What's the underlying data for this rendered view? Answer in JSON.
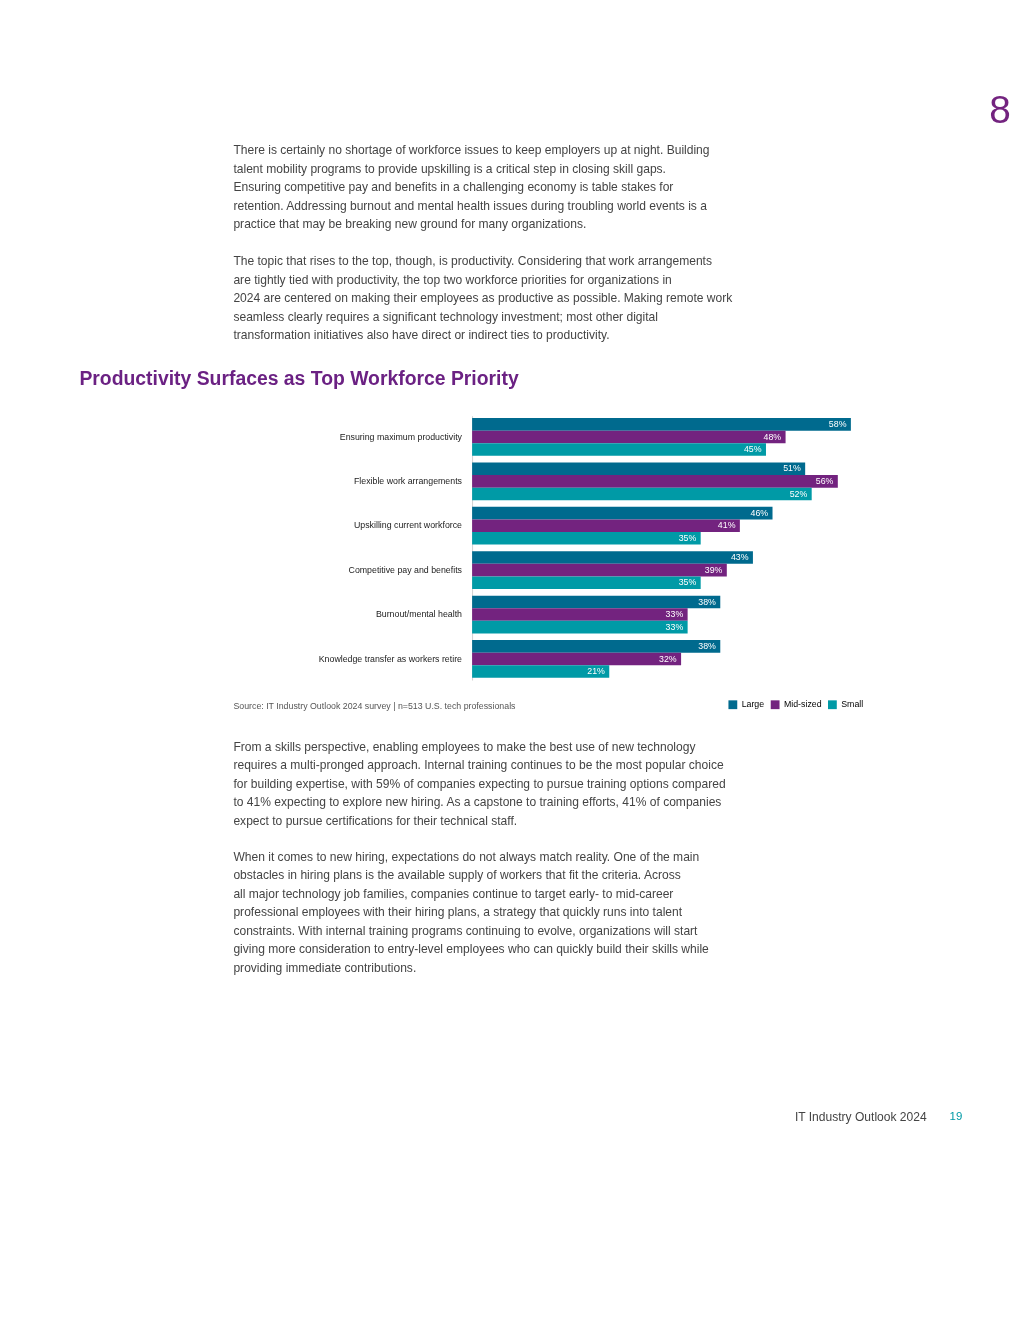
{
  "chart_data": {
    "type": "bar",
    "orientation": "horizontal",
    "title": "Productivity Surfaces as Top Workforce Priority",
    "categories": [
      "Ensuring maximum productivity",
      "Flexible work arrangements",
      "Upskilling current workforce",
      "Competitive pay and benefits",
      "Burnout/mental health",
      "Knowledge transfer as workers retire"
    ],
    "series": [
      {
        "name": "Large",
        "color": "#006a8e",
        "values": [
          58,
          51,
          46,
          43,
          38,
          38
        ],
        "value_labels": [
          "58%",
          "51%",
          "46%",
          "43%",
          "38%",
          "38%"
        ]
      },
      {
        "name": "Mid-sized",
        "color": "#73237f",
        "values": [
          48,
          56,
          41,
          39,
          33,
          32
        ],
        "value_labels": [
          "48%",
          "56%",
          "41%",
          "39%",
          "33%",
          "32%"
        ]
      },
      {
        "name": "Small",
        "color": "#009aa6",
        "values": [
          45,
          52,
          35,
          35,
          33,
          21
        ],
        "value_labels": [
          "45%",
          "52%",
          "35%",
          "35%",
          "33%",
          "21%"
        ]
      }
    ],
    "legend": "bottom",
    "tick_labels": "y",
    "annotations": [
      "There is certainly no shortage of workforce issues to keep employers up at night. Building talent mobility programs to provide upskilling is a critical step in closing skill gaps. Ensuring competitive pay and benefits in a challenging economy is table stakes for retention. Addressing burnout and mental health issues during troubling world events is a practice that may be breaking new ground for many organizations.",
      "The topic that rises to the top, though, is productivity. Considering that work arrangements are tightly tied with productivity, the top two workforce priorities for organizations in 2024 are centered on making their employees as productive as possible. Making remote work seamless clearly requires a significant technology investment; most other digital transformation initiatives also have direct or indirect ties to productivity.",
      "Source: IT Industry Outlook 2024 survey | n=513 U.S. tech professionals",
      "From a skills perspective, enabling employees to make the best use of new technology requires a multi-pronged approach. Internal training continues to be the most popular choice for building expertise, with 59% of companies expecting to pursue training options compared to 41% expecting to explore new hiring. As a capstone to training efforts, 41% of companies expect to pursue certifications for their technical staff.",
      "When it comes to new hiring, expectations do not always match reality. One of the main obstacles in hiring plans is the available supply of workers that fit the criteria. Across all major technology job families, companies continue to target early- to mid-career professional employees with their hiring plans, a strategy that quickly runs into talent constraints. With internal training programs continuing to evolve, organizations will start giving more consideration to entry-level employees who can quickly build their skills while providing immediate contributions.",
      "IT Industry Outlook 2024",
      "19",
      "8"
    ]
  }
}
